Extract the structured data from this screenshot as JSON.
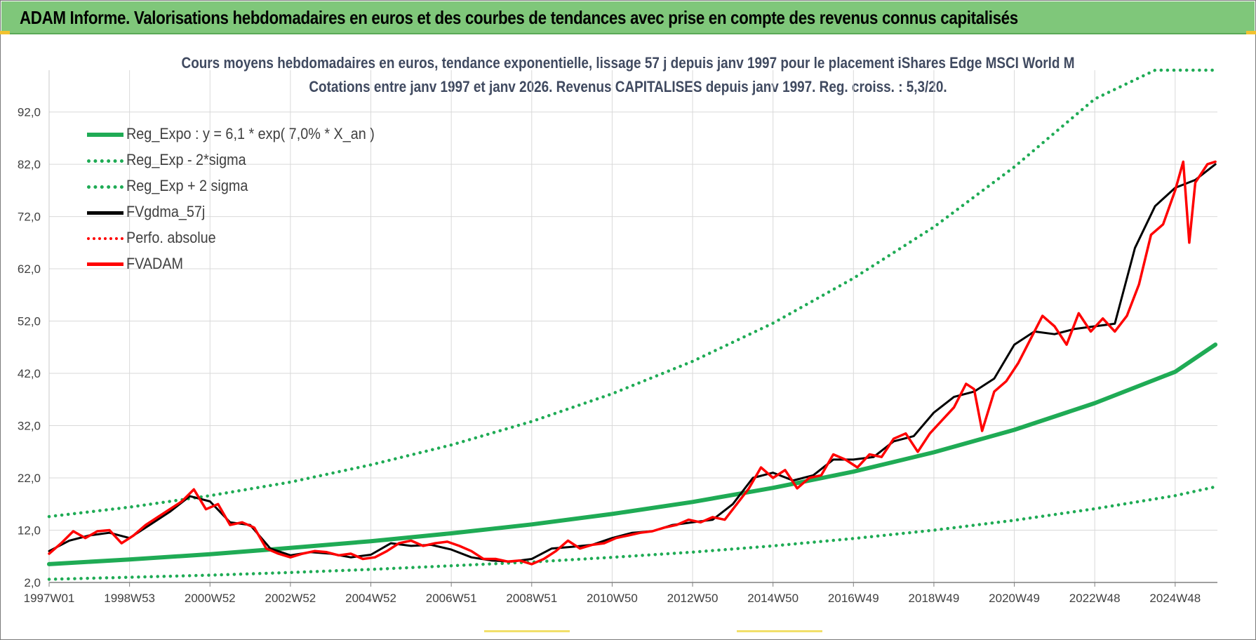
{
  "banner": {
    "title": "ADAM Informe. Valorisations hebdomadaires en euros et des courbes de tendances avec prise en compte des revenus connus capitalisés"
  },
  "colors": {
    "banner_bg": "#7fc77a",
    "trend_green": "#1fab55",
    "price_red": "#ff0000",
    "smooth_black": "#000000",
    "title_text": "#404a60",
    "grid": "#d9d9d9"
  },
  "chart_data": {
    "type": "line",
    "title_line1": "Cours moyens hebdomadaires en euros, tendance exponentielle, lissage 57 j depuis janv 1997  pour le placement iShares Edge MSCI World M",
    "title_line2": "Cotations entre janv 1997 et janv 2026. Revenus CAPITALISES depuis janv 1997. Reg. croiss. : 5,3/20.",
    "xlabel": "",
    "ylabel": "",
    "ylim": [
      2.0,
      100.0
    ],
    "y_ticks": [
      "2,0",
      "12,0",
      "22,0",
      "32,0",
      "42,0",
      "52,0",
      "62,0",
      "72,0",
      "82,0",
      "92,0"
    ],
    "x_ticks": [
      "1997W01",
      "1998W53",
      "2000W52",
      "2002W52",
      "2004W52",
      "2006W51",
      "2008W51",
      "2010W50",
      "2012W50",
      "2014W50",
      "2016W49",
      "2018W49",
      "2020W49",
      "2022W48",
      "2024W48"
    ],
    "x_range_years": [
      1997.0,
      2026.05
    ],
    "grid": true,
    "legend_position": "top-left",
    "legend": [
      {
        "label": "Reg_Expo : y = 6,1 * exp( 7,0% *  X_an )",
        "style": "solid",
        "color": "#1fab55"
      },
      {
        "label": "Reg_Exp - 2*sigma",
        "style": "dotted",
        "color": "#1fab55"
      },
      {
        "label": "Reg_Exp + 2 sigma",
        "style": "dotted",
        "color": "#1fab55"
      },
      {
        "label": "FVgdma_57j",
        "style": "solid",
        "color": "#000000"
      },
      {
        "label": "Perfo. absolue",
        "style": "dotted",
        "color": "#ff0000"
      },
      {
        "label": "FVADAM",
        "style": "solid",
        "color": "#ff0000"
      }
    ],
    "series": [
      {
        "name": "Reg_Expo : y = 6,1 * exp( 7,0% *  X_an )",
        "x": [
          1997,
          1999,
          2001,
          2003,
          2005,
          2007,
          2009,
          2011,
          2013,
          2015,
          2017,
          2019,
          2021,
          2023,
          2025,
          2026
        ],
        "values": [
          5.5,
          6.4,
          7.4,
          8.6,
          9.9,
          11.4,
          13.1,
          15.1,
          17.4,
          20.1,
          23.2,
          26.9,
          31.2,
          36.3,
          42.3,
          47.5
        ]
      },
      {
        "name": "Reg_Exp - 2*sigma",
        "x": [
          1997,
          1999,
          2001,
          2003,
          2005,
          2007,
          2009,
          2011,
          2013,
          2015,
          2017,
          2019,
          2021,
          2023,
          2025,
          2026
        ],
        "values": [
          2.6,
          3.0,
          3.4,
          3.9,
          4.5,
          5.2,
          5.9,
          6.8,
          7.8,
          9.0,
          10.4,
          12.0,
          13.9,
          16.1,
          18.6,
          20.3
        ]
      },
      {
        "name": "Reg_Exp + 2 sigma",
        "x": [
          1997,
          1999,
          2001,
          2003,
          2005,
          2007,
          2009,
          2011,
          2013,
          2015,
          2017,
          2019,
          2021,
          2023,
          2024.5,
          2024.6,
          2026
        ],
        "values": [
          14.6,
          16.4,
          18.6,
          21.2,
          24.5,
          28.3,
          32.8,
          38.1,
          44.3,
          51.6,
          60.2,
          70.0,
          81.5,
          94.5,
          100.0,
          100.0,
          100.0
        ]
      },
      {
        "name": "FVgdma_57j",
        "x": [
          1997.0,
          1997.5,
          1998.0,
          1998.5,
          1999.0,
          1999.5,
          2000.0,
          2000.5,
          2001.0,
          2001.5,
          2002.0,
          2002.5,
          2003.0,
          2003.5,
          2004.0,
          2004.5,
          2005.0,
          2005.5,
          2006.0,
          2006.5,
          2007.0,
          2007.5,
          2008.0,
          2008.5,
          2009.0,
          2009.5,
          2010.0,
          2010.5,
          2011.0,
          2011.5,
          2012.0,
          2012.5,
          2013.0,
          2013.5,
          2014.0,
          2014.5,
          2015.0,
          2015.5,
          2016.0,
          2016.5,
          2017.0,
          2017.5,
          2018.0,
          2018.5,
          2019.0,
          2019.5,
          2020.0,
          2020.5,
          2021.0,
          2021.5,
          2022.0,
          2022.5,
          2023.0,
          2023.5,
          2024.0,
          2024.5,
          2025.0,
          2025.5,
          2026.0
        ],
        "values": [
          8.0,
          10.0,
          11.0,
          11.5,
          10.5,
          13.0,
          15.5,
          18.5,
          17.5,
          13.5,
          13.0,
          8.5,
          7.2,
          7.8,
          7.5,
          6.8,
          7.3,
          9.5,
          9.0,
          9.2,
          8.3,
          6.8,
          6.2,
          6.0,
          6.5,
          8.5,
          8.8,
          9.2,
          10.5,
          11.5,
          11.8,
          13.0,
          13.5,
          14.0,
          17.0,
          22.0,
          23.0,
          21.5,
          22.5,
          25.5,
          25.5,
          26.0,
          29.0,
          30.0,
          34.5,
          37.5,
          38.5,
          41.0,
          47.5,
          50.0,
          49.5,
          50.5,
          51.0,
          51.5,
          66.0,
          74.0,
          77.5,
          79.0,
          82.0
        ]
      },
      {
        "name": "FVADAM",
        "x": [
          1997.0,
          1997.3,
          1997.6,
          1997.9,
          1998.2,
          1998.5,
          1998.8,
          1999.1,
          1999.4,
          1999.7,
          2000.0,
          2000.3,
          2000.6,
          2000.9,
          2001.2,
          2001.5,
          2001.8,
          2002.1,
          2002.4,
          2002.7,
          2003.0,
          2003.3,
          2003.6,
          2003.9,
          2004.2,
          2004.5,
          2004.8,
          2005.1,
          2005.4,
          2005.7,
          2006.0,
          2006.3,
          2006.6,
          2006.9,
          2007.2,
          2007.5,
          2007.8,
          2008.1,
          2008.4,
          2008.7,
          2009.0,
          2009.3,
          2009.6,
          2009.9,
          2010.2,
          2010.5,
          2010.8,
          2011.1,
          2011.4,
          2011.7,
          2012.0,
          2012.3,
          2012.6,
          2012.9,
          2013.2,
          2013.5,
          2013.8,
          2014.1,
          2014.4,
          2014.7,
          2015.0,
          2015.3,
          2015.6,
          2015.9,
          2016.2,
          2016.5,
          2016.8,
          2017.1,
          2017.4,
          2017.7,
          2018.0,
          2018.3,
          2018.6,
          2018.9,
          2019.2,
          2019.5,
          2019.8,
          2020.0,
          2020.2,
          2020.5,
          2020.8,
          2021.1,
          2021.4,
          2021.7,
          2022.0,
          2022.3,
          2022.6,
          2022.9,
          2023.2,
          2023.5,
          2023.8,
          2024.1,
          2024.4,
          2024.7,
          2025.0,
          2025.2,
          2025.35,
          2025.5,
          2025.8,
          2026.0
        ],
        "values": [
          7.5,
          9.5,
          11.8,
          10.5,
          11.8,
          12.0,
          9.5,
          11.0,
          13.0,
          14.5,
          16.0,
          17.5,
          19.8,
          16.0,
          17.0,
          13.0,
          13.5,
          12.5,
          8.5,
          7.5,
          6.8,
          7.5,
          8.0,
          7.8,
          7.2,
          7.5,
          6.5,
          6.8,
          8.0,
          9.5,
          10.0,
          9.0,
          9.5,
          9.8,
          9.0,
          8.0,
          6.5,
          6.5,
          6.0,
          6.2,
          5.5,
          6.5,
          8.0,
          10.0,
          8.5,
          9.2,
          9.5,
          10.5,
          11.0,
          11.5,
          11.8,
          12.5,
          13.0,
          14.0,
          13.5,
          14.5,
          14.0,
          17.0,
          20.0,
          24.0,
          22.0,
          23.5,
          20.0,
          22.0,
          22.5,
          26.5,
          25.5,
          24.0,
          26.5,
          26.0,
          29.5,
          30.5,
          27.0,
          30.5,
          33.0,
          35.5,
          40.0,
          39.0,
          31.0,
          38.5,
          40.5,
          44.0,
          48.5,
          53.0,
          51.0,
          47.5,
          53.5,
          50.0,
          52.5,
          50.0,
          53.0,
          59.0,
          68.5,
          70.5,
          77.0,
          82.5,
          67.0,
          78.5,
          82.0,
          82.5
        ]
      }
    ]
  }
}
